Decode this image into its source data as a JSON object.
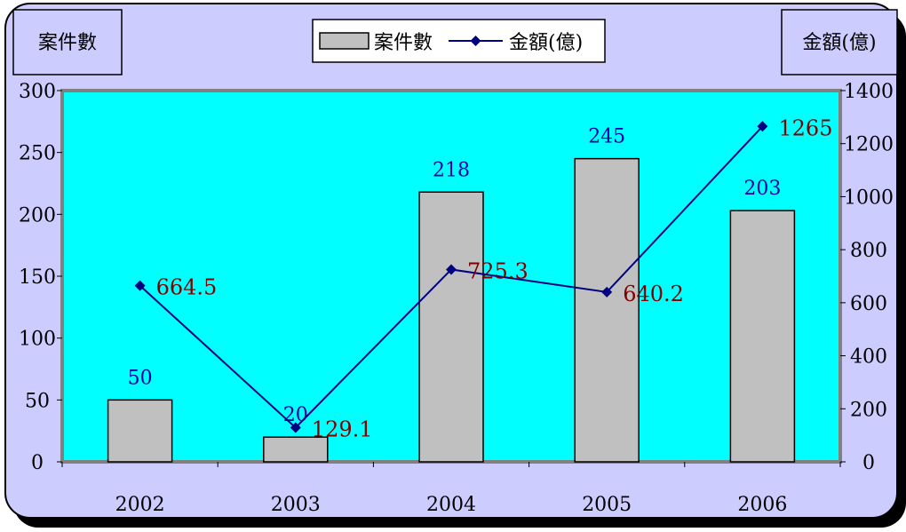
{
  "chart_data": {
    "type": "bar+line",
    "categories": [
      "2002",
      "2003",
      "2004",
      "2005",
      "2006"
    ],
    "series": [
      {
        "name": "案件數",
        "kind": "bar",
        "axis": "left",
        "values": [
          50,
          20,
          218,
          245,
          203
        ],
        "labels": [
          "50",
          "20",
          "218",
          "245",
          "203"
        ]
      },
      {
        "name": "金額(億)",
        "kind": "line",
        "axis": "right",
        "values": [
          664.5,
          129.1,
          725.3,
          640.2,
          1265
        ],
        "labels": [
          "664.5",
          "129.1",
          "725.3",
          "640.2",
          "1265"
        ]
      }
    ],
    "y_left": {
      "label": "案件數",
      "ylim": [
        0,
        300
      ],
      "ticks": [
        "0",
        "50",
        "100",
        "150",
        "200",
        "250",
        "300"
      ]
    },
    "y_right": {
      "label": "金額(億)",
      "ylim": [
        0,
        1400
      ],
      "ticks": [
        "0",
        "200",
        "400",
        "600",
        "800",
        "1000",
        "1200",
        "1400"
      ]
    },
    "grid": false,
    "legend": "top-center",
    "colors": {
      "frame_bg": "#ccccff",
      "plot_bg": "#00ffff",
      "bar_fill": "#c0c0c0",
      "line": "#000080",
      "bar_label": "#0000a0",
      "line_label": "#800000"
    }
  }
}
